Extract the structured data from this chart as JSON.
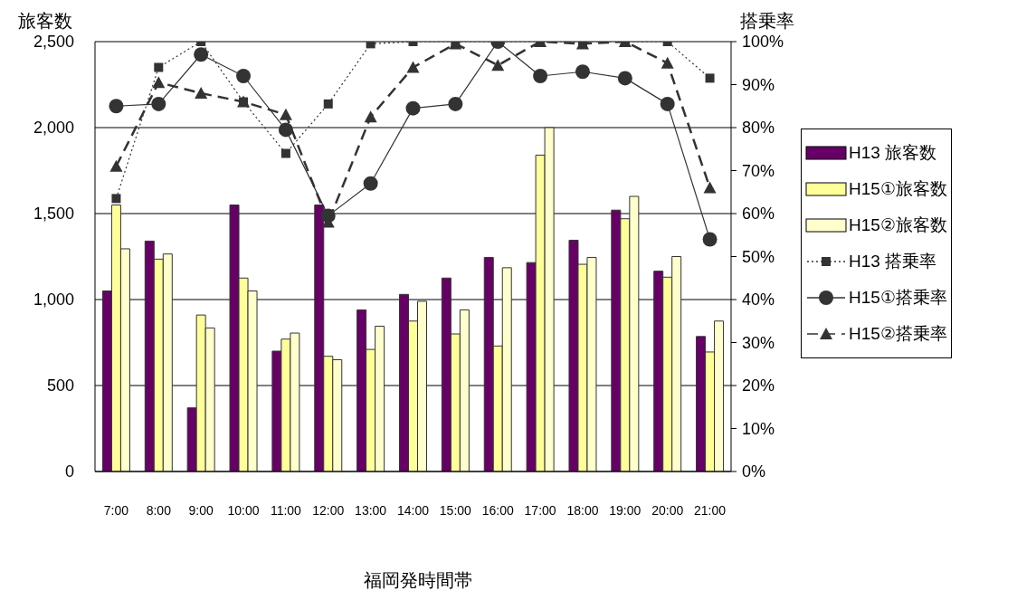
{
  "chart_data": {
    "type": "bar",
    "xlabel": "福岡発時間帯",
    "ylabel": "旅客数",
    "y2label": "搭乗率",
    "categories": [
      "7:00",
      "8:00",
      "9:00",
      "10:00",
      "11:00",
      "12:00",
      "13:00",
      "14:00",
      "15:00",
      "16:00",
      "17:00",
      "18:00",
      "19:00",
      "20:00",
      "21:00"
    ],
    "series": [
      {
        "name": "H13 旅客数",
        "color": "#660066",
        "values": [
          1050,
          1340,
          370,
          1550,
          700,
          1550,
          940,
          1030,
          1125,
          1245,
          1215,
          1345,
          1520,
          1165,
          785
        ]
      },
      {
        "name": "H15①旅客数",
        "color": "#ffff99",
        "values": [
          1550,
          1235,
          910,
          1125,
          770,
          670,
          710,
          875,
          800,
          730,
          1840,
          1205,
          1470,
          1130,
          695
        ]
      },
      {
        "name": "H15②旅客数",
        "color": "#ffffcc",
        "values": [
          1295,
          1265,
          835,
          1050,
          805,
          650,
          845,
          990,
          940,
          1185,
          2000,
          1245,
          1600,
          1250,
          875
        ]
      },
      {
        "name": "H13 搭乗率",
        "type": "line",
        "axis": "y2",
        "color": "#333333",
        "marker": "square",
        "line_style": "dotted",
        "values": [
          63.5,
          94,
          100,
          86,
          74,
          85.5,
          99.5,
          100,
          100,
          100,
          100,
          100,
          100,
          100,
          91.5
        ]
      },
      {
        "name": "H15①搭乗率",
        "type": "line",
        "axis": "y2",
        "color": "#333333",
        "marker": "circle",
        "line_style": "solid",
        "values": [
          85,
          85.5,
          97,
          92,
          79.5,
          59.5,
          67,
          84.5,
          85.5,
          100,
          92,
          93,
          91.5,
          85.5,
          54
        ]
      },
      {
        "name": "H15②搭乗率",
        "type": "line",
        "axis": "y2",
        "color": "#333333",
        "marker": "triangle",
        "line_style": "dashed",
        "values": [
          71,
          90.5,
          88,
          86,
          83,
          58,
          82.5,
          94,
          99.5,
          94.5,
          100,
          99.5,
          100,
          95,
          66
        ]
      }
    ],
    "ylim": [
      0,
      2500
    ],
    "yticks": [
      0,
      {
        "value": 500,
        "label": "500"
      },
      {
        "value": 1000,
        "label": "1,000"
      },
      {
        "value": 1500,
        "label": "1,500"
      },
      {
        "value": 2000,
        "label": "2,000"
      },
      {
        "value": 2500,
        "label": "2,500"
      }
    ],
    "y2lim": [
      0,
      100
    ],
    "y2ticks": [
      {
        "value": 0,
        "label": "0%"
      },
      {
        "value": 10,
        "label": "10%"
      },
      {
        "value": 20,
        "label": "20%"
      },
      {
        "value": 30,
        "label": "30%"
      },
      {
        "value": 40,
        "label": "40%"
      },
      {
        "value": 50,
        "label": "50%"
      },
      {
        "value": 60,
        "label": "60%"
      },
      {
        "value": 70,
        "label": "70%"
      },
      {
        "value": 80,
        "label": "80%"
      },
      {
        "value": 90,
        "label": "90%"
      },
      {
        "value": 100,
        "label": "100%"
      }
    ],
    "grid": "y",
    "legend": "right"
  }
}
